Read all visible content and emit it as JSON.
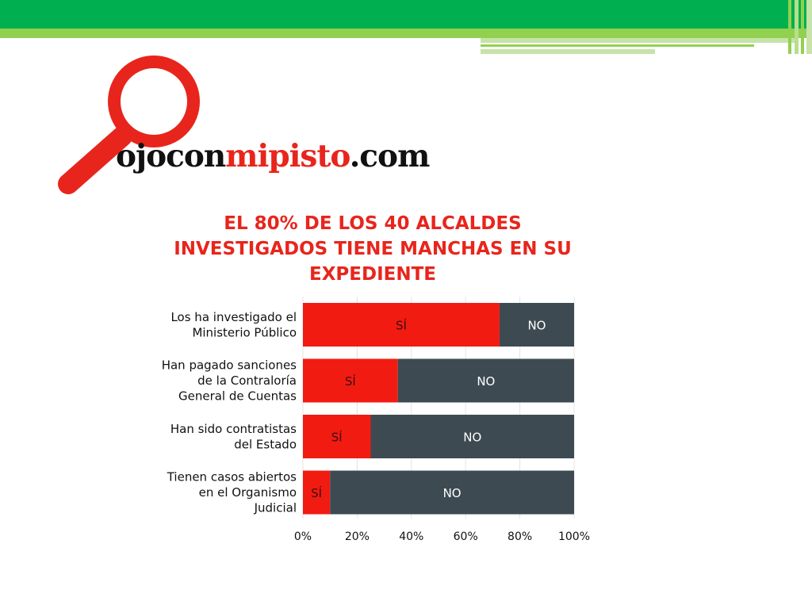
{
  "logo": {
    "text_dark_1": "ojocon",
    "text_red": "mipisto",
    "text_dark_2": ".com"
  },
  "title_lines": [
    "EL  80% DE LOS 40 ALCALDES",
    "INVESTIGADOS TIENE MANCHAS EN SU",
    "EXPEDIENTE"
  ],
  "colors": {
    "si": "#f21b12",
    "no": "#3e4a51",
    "title": "#e8251c",
    "band_dark": "#00b050",
    "band_light": "#92d050"
  },
  "chart_data": {
    "type": "bar",
    "orientation": "horizontal",
    "stacked": true,
    "categories": [
      [
        "Los ha investigado el",
        "Ministerio Público"
      ],
      [
        "Han pagado sanciones",
        "de la Contraloría",
        "General de Cuentas"
      ],
      [
        "Han sido contratistas",
        "del Estado"
      ],
      [
        "Tienen casos abiertos",
        "en el Organismo",
        "Judicial"
      ]
    ],
    "series": [
      {
        "name": "SÍ",
        "values": [
          72.5,
          35,
          25,
          10
        ],
        "color": "#f21b12"
      },
      {
        "name": "NO",
        "values": [
          27.5,
          65,
          75,
          90
        ],
        "color": "#3e4a51"
      }
    ],
    "xlim": [
      0,
      100
    ],
    "x_ticks": [
      "0%",
      "20%",
      "40%",
      "60%",
      "80%",
      "100%"
    ],
    "grid": true
  }
}
